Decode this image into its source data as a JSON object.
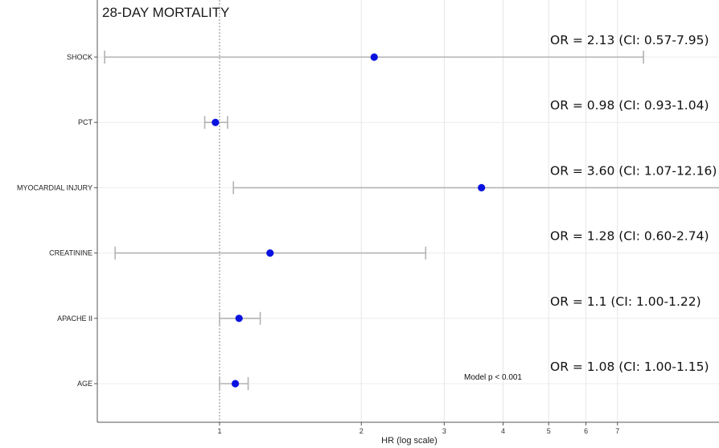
{
  "chart_data": {
    "type": "scatter",
    "title": "28-DAY MORTALITY",
    "xlabel": "HR (log scale)",
    "x_scale": "log",
    "xlim": [
      0.55,
      11.5
    ],
    "x_ticks": [
      1,
      2,
      3,
      4,
      5,
      6,
      7
    ],
    "reference_line": 1,
    "grid": true,
    "annotation": "Model p < 0.001",
    "point_color": "#0b12e0",
    "rows": [
      {
        "label": "SHOCK",
        "or": 2.13,
        "lo": 0.57,
        "hi": 7.95,
        "text": "OR = 2.13 (CI: 0.57-7.95)"
      },
      {
        "label": "PCT",
        "or": 0.98,
        "lo": 0.93,
        "hi": 1.04,
        "text": "OR = 0.98 (CI: 0.93-1.04)"
      },
      {
        "label": "MYOCARDIAL INJURY",
        "or": 3.6,
        "lo": 1.07,
        "hi": 12.16,
        "text": "OR = 3.60 (CI: 1.07-12.16)"
      },
      {
        "label": "CREATININE",
        "or": 1.28,
        "lo": 0.6,
        "hi": 2.74,
        "text": "OR = 1.28 (CI: 0.60-2.74)"
      },
      {
        "label": "APACHE II",
        "or": 1.1,
        "lo": 1.0,
        "hi": 1.22,
        "text": "OR = 1.1 (CI: 1.00-1.22)"
      },
      {
        "label": "AGE",
        "or": 1.08,
        "lo": 1.0,
        "hi": 1.15,
        "text": "OR = 1.08 (CI: 1.00-1.15)"
      }
    ]
  }
}
